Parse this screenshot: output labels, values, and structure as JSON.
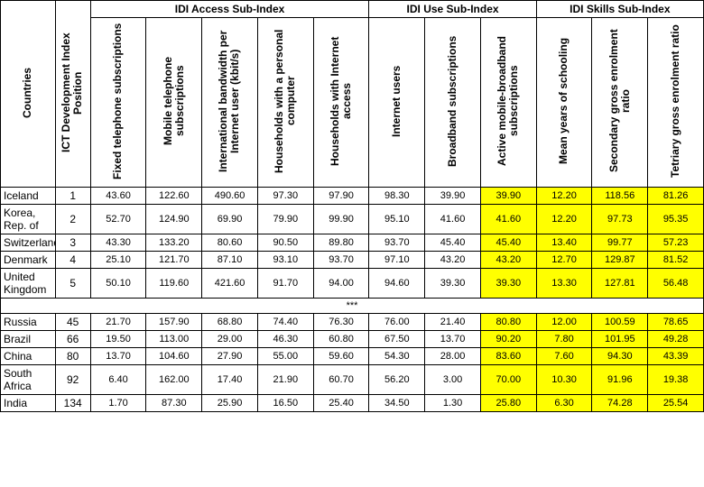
{
  "highlight_color": "#ffff00",
  "separator_text": "***",
  "headers": {
    "countries": "Countries",
    "index_position": "ICT Development Index Position",
    "group_access": "IDI Access Sub-Index",
    "group_use": "IDI Use Sub-Index",
    "group_skills": "IDI Skills Sub-Index",
    "cols": [
      "Fixed telephone subscriptions",
      "Mobile telephone subscriptions",
      "International bandwidth per Internet user (kbit/s)",
      "Households with a personal computer",
      "Households with Internet access",
      "Internet users",
      "Broadband subscriptions",
      "Active mobile-broadband subscriptions",
      "Mean years of schooling",
      "Secondary gross enrolment ratio",
      "Tetriary gross enrolment ratio"
    ]
  },
  "rows_top": [
    {
      "country": "Iceland",
      "rank": "1",
      "vals": [
        "43.60",
        "122.60",
        "490.60",
        "97.30",
        "97.90",
        "98.30",
        "39.90",
        "39.90",
        "12.20",
        "118.56",
        "81.26"
      ]
    },
    {
      "country": "Korea, Rep. of",
      "rank": "2",
      "vals": [
        "52.70",
        "124.90",
        "69.90",
        "79.90",
        "99.90",
        "95.10",
        "41.60",
        "41.60",
        "12.20",
        "97.73",
        "95.35"
      ]
    },
    {
      "country": "Switzerland",
      "rank": "3",
      "vals": [
        "43.30",
        "133.20",
        "80.60",
        "90.50",
        "89.80",
        "93.70",
        "45.40",
        "45.40",
        "13.40",
        "99.77",
        "57.23"
      ]
    },
    {
      "country": "Denmark",
      "rank": "4",
      "vals": [
        "25.10",
        "121.70",
        "87.10",
        "93.10",
        "93.70",
        "97.10",
        "43.20",
        "43.20",
        "12.70",
        "129.87",
        "81.52"
      ]
    },
    {
      "country": "United Kingdom",
      "rank": "5",
      "vals": [
        "50.10",
        "119.60",
        "421.60",
        "91.70",
        "94.00",
        "94.60",
        "39.30",
        "39.30",
        "13.30",
        "127.81",
        "56.48"
      ]
    }
  ],
  "rows_bottom": [
    {
      "country": "Russia",
      "rank": "45",
      "vals": [
        "21.70",
        "157.90",
        "68.80",
        "74.40",
        "76.30",
        "76.00",
        "21.40",
        "80.80",
        "12.00",
        "100.59",
        "78.65"
      ]
    },
    {
      "country": "Brazil",
      "rank": "66",
      "vals": [
        "19.50",
        "113.00",
        "29.00",
        "46.30",
        "60.80",
        "67.50",
        "13.70",
        "90.20",
        "7.80",
        "101.95",
        "49.28"
      ]
    },
    {
      "country": "China",
      "rank": "80",
      "vals": [
        "13.70",
        "104.60",
        "27.90",
        "55.00",
        "59.60",
        "54.30",
        "28.00",
        "83.60",
        "7.60",
        "94.30",
        "43.39"
      ]
    },
    {
      "country": "South Africa",
      "rank": "92",
      "vals": [
        "6.40",
        "162.00",
        "17.40",
        "21.90",
        "60.70",
        "56.20",
        "3.00",
        "70.00",
        "10.30",
        "91.96",
        "19.38"
      ]
    },
    {
      "country": "India",
      "rank": "134",
      "vals": [
        "1.70",
        "87.30",
        "25.90",
        "16.50",
        "25.40",
        "34.50",
        "1.30",
        "25.80",
        "6.30",
        "74.28",
        "25.54"
      ]
    }
  ],
  "highlight_from_col": 7
}
